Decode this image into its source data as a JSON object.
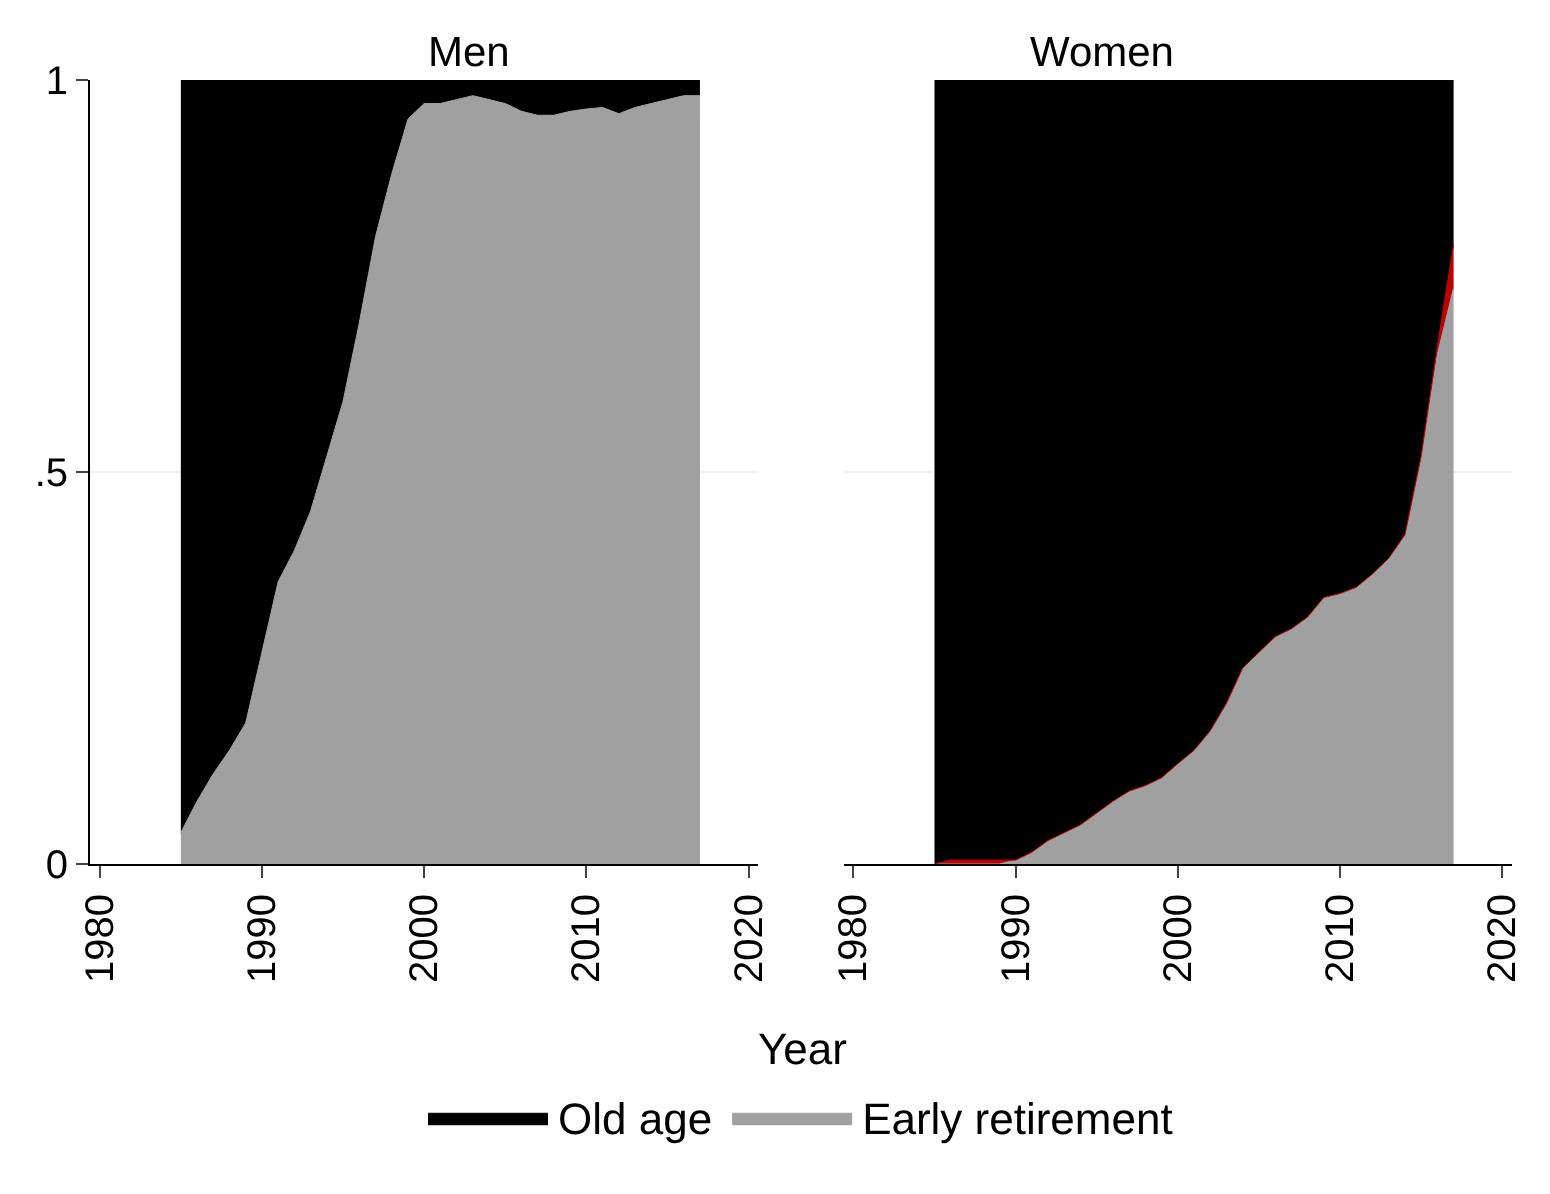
{
  "chart_data": [
    {
      "type": "area",
      "title": "Men",
      "stacked": true,
      "xlabel": "Year",
      "legend": "bottom",
      "grid": "y",
      "x": [
        1985,
        1986,
        1987,
        1988,
        1989,
        1990,
        1991,
        1992,
        1993,
        1994,
        1995,
        1996,
        1997,
        1998,
        1999,
        2000,
        2001,
        2002,
        2003,
        2004,
        2005,
        2006,
        2007,
        2008,
        2009,
        2010,
        2011,
        2012,
        2013,
        2014,
        2015,
        2016,
        2017
      ],
      "series": [
        {
          "name": "Early retirement",
          "color": "#a0a0a0",
          "values": [
            0.04,
            0.08,
            0.115,
            0.145,
            0.18,
            0.27,
            0.36,
            0.4,
            0.45,
            0.52,
            0.59,
            0.69,
            0.8,
            0.88,
            0.95,
            0.97,
            0.97,
            0.975,
            0.98,
            0.975,
            0.97,
            0.96,
            0.955,
            0.955,
            0.96,
            0.963,
            0.965,
            0.957,
            0.965,
            0.97,
            0.975,
            0.98,
            0.98
          ]
        },
        {
          "name": "Old age",
          "color": "#000000",
          "values": [
            0.96,
            0.92,
            0.885,
            0.855,
            0.82,
            0.73,
            0.64,
            0.6,
            0.55,
            0.48,
            0.41,
            0.31,
            0.2,
            0.12,
            0.05,
            0.03,
            0.03,
            0.025,
            0.02,
            0.025,
            0.03,
            0.04,
            0.045,
            0.045,
            0.04,
            0.037,
            0.035,
            0.043,
            0.035,
            0.03,
            0.025,
            0.02,
            0.02
          ]
        }
      ],
      "xlim": [
        1979.4,
        2020.6
      ],
      "xticks": [
        1980,
        1990,
        2000,
        2010,
        2020
      ],
      "ylim": [
        0,
        1
      ],
      "yticks": [
        0,
        {
          "value": 0.5,
          "label": ".5"
        },
        1
      ]
    },
    {
      "type": "area",
      "title": "Women",
      "stacked": true,
      "grid": "y",
      "tick_labels": "x",
      "x": [
        1985,
        1986,
        1987,
        1988,
        1989,
        1990,
        1991,
        1992,
        1993,
        1994,
        1995,
        1996,
        1997,
        1998,
        1999,
        2000,
        2001,
        2002,
        2003,
        2004,
        2005,
        2006,
        2007,
        2008,
        2009,
        2010,
        2011,
        2012,
        2013,
        2014,
        2015,
        2016,
        2017
      ],
      "series": [
        {
          "name": "Early retirement",
          "color": "#a0a0a0",
          "values": [
            0,
            0,
            0,
            0,
            0,
            0.005,
            0.015,
            0.03,
            0.04,
            0.05,
            0.065,
            0.08,
            0.093,
            0.1,
            0.11,
            0.128,
            0.145,
            0.17,
            0.205,
            0.25,
            0.27,
            0.29,
            0.3,
            0.315,
            0.34,
            0.345,
            0.353,
            0.37,
            0.39,
            0.42,
            0.52,
            0.65,
            0.735
          ]
        },
        {
          "color": "#c00000",
          "values": [
            0,
            0.005,
            0.005,
            0.005,
            0.005,
            0,
            0,
            0,
            0,
            0,
            0,
            0,
            0,
            0,
            0,
            0,
            0,
            0,
            0,
            0,
            0,
            0,
            0,
            0,
            0,
            0,
            0,
            0,
            0,
            0,
            0,
            0.01,
            0.055
          ]
        },
        {
          "name": "Old age",
          "color": "#000000",
          "values": [
            1,
            0.995,
            0.995,
            0.995,
            0.995,
            0.995,
            0.985,
            0.97,
            0.96,
            0.95,
            0.935,
            0.92,
            0.907,
            0.9,
            0.89,
            0.872,
            0.855,
            0.83,
            0.795,
            0.75,
            0.73,
            0.71,
            0.7,
            0.685,
            0.66,
            0.655,
            0.647,
            0.63,
            0.61,
            0.58,
            0.48,
            0.34,
            0.21
          ]
        }
      ],
      "xlim": [
        1979.4,
        2020.6
      ],
      "xticks": [
        1980,
        1990,
        2000,
        2010,
        2020
      ],
      "ylim": [
        0,
        1
      ],
      "yticks": [
        0,
        0.5,
        1
      ]
    }
  ]
}
